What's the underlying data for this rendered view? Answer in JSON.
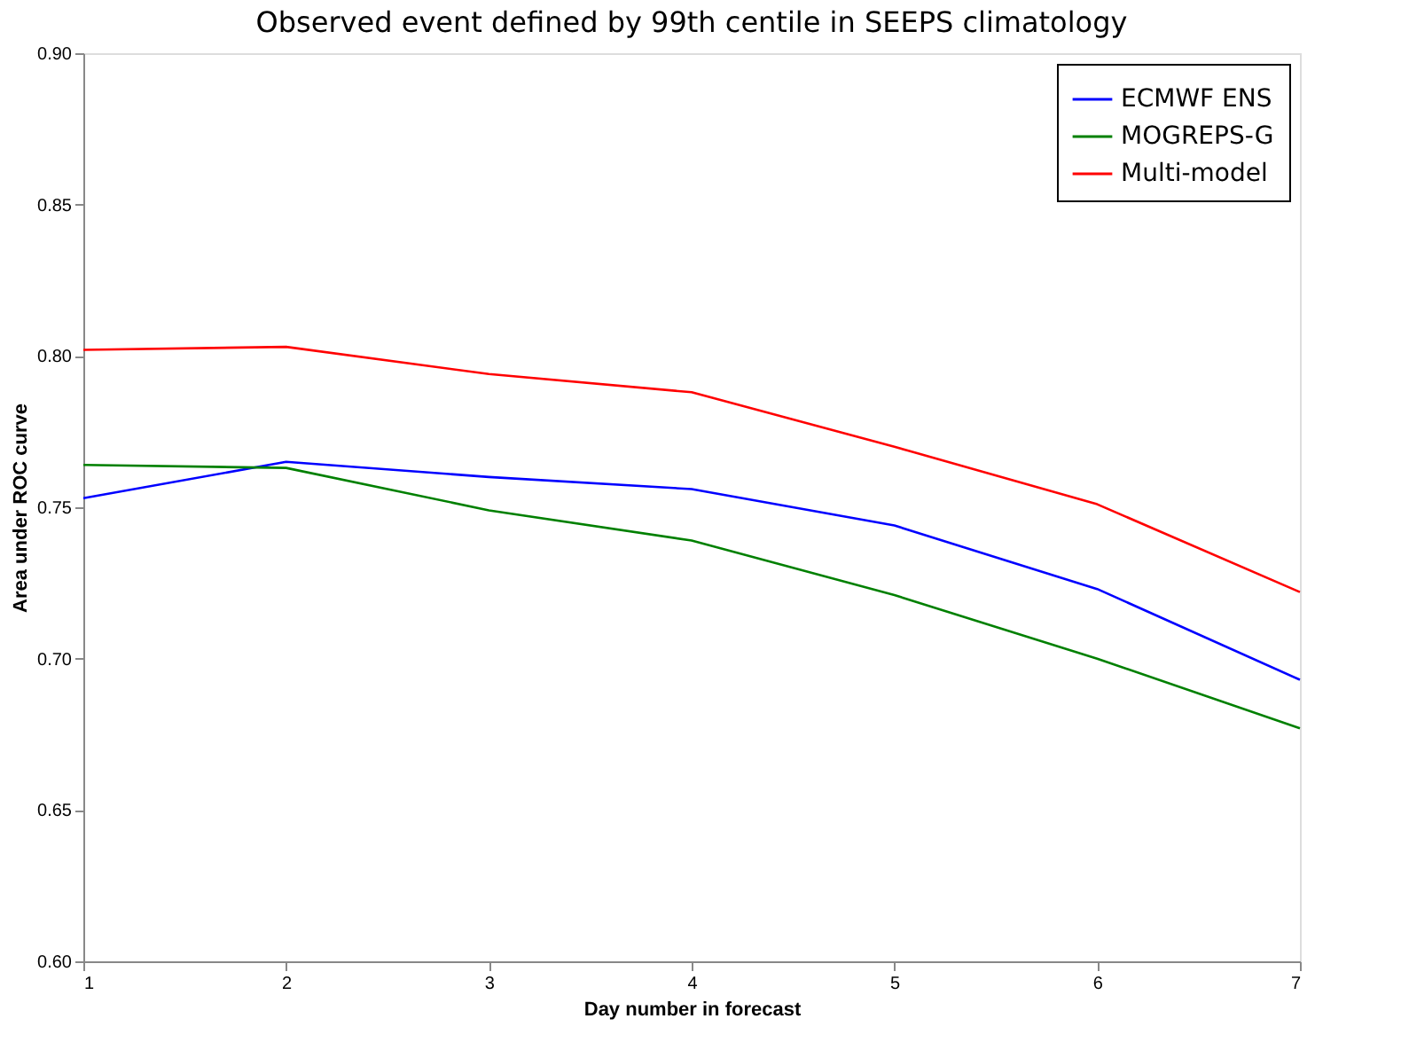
{
  "chart_data": {
    "type": "line",
    "title": "Observed event defined by 99th centile in SEEPS climatology",
    "xlabel": "Day number in forecast",
    "ylabel": "Area under ROC curve",
    "x": [
      1,
      2,
      3,
      4,
      5,
      6,
      7
    ],
    "series": [
      {
        "name": "ECMWF ENS",
        "color": "#0000ff",
        "values": [
          0.753,
          0.765,
          0.76,
          0.756,
          0.744,
          0.723,
          0.693
        ]
      },
      {
        "name": "MOGREPS-G",
        "color": "#008000",
        "values": [
          0.764,
          0.763,
          0.749,
          0.739,
          0.721,
          0.7,
          0.677
        ]
      },
      {
        "name": "Multi-model",
        "color": "#ff0000",
        "values": [
          0.802,
          0.803,
          0.794,
          0.788,
          0.77,
          0.751,
          0.722
        ]
      }
    ],
    "xlim": [
      1,
      7
    ],
    "xticks": [
      1,
      2,
      3,
      4,
      5,
      6,
      7
    ],
    "ylim": [
      0.6,
      0.9
    ],
    "yticks": [
      {
        "value": 0.6,
        "label": "0.60"
      },
      0.65,
      {
        "value": 0.7,
        "label": "0.70"
      },
      0.75,
      {
        "value": 0.8,
        "label": "0.80"
      },
      0.85,
      {
        "value": 0.9,
        "label": "0.90"
      }
    ],
    "grid": false,
    "legend": "top right",
    "marker": "none",
    "line_style": "solid"
  }
}
